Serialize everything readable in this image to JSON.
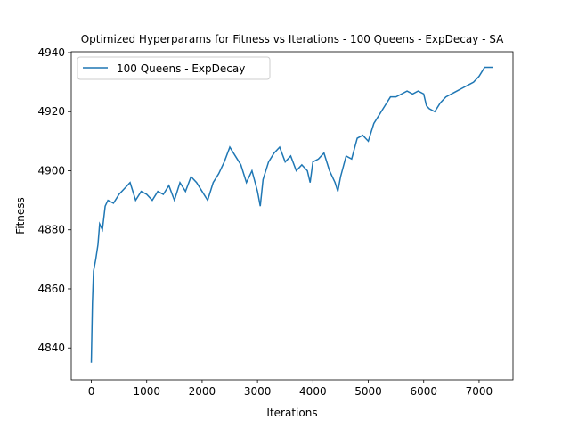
{
  "chart_data": {
    "type": "line",
    "title": "Optimized Hyperparams for Fitness vs Iterations - 100 Queens - ExpDecay - SA",
    "x_label": "Iterations",
    "y_label": "Fitness",
    "x": [
      0,
      10,
      20,
      40,
      80,
      120,
      150,
      200,
      250,
      300,
      400,
      500,
      600,
      700,
      800,
      900,
      1000,
      1100,
      1200,
      1300,
      1400,
      1500,
      1600,
      1700,
      1800,
      1900,
      2000,
      2100,
      2200,
      2300,
      2400,
      2500,
      2600,
      2700,
      2800,
      2900,
      3000,
      3050,
      3100,
      3200,
      3300,
      3400,
      3500,
      3600,
      3700,
      3800,
      3900,
      3950,
      4000,
      4100,
      4200,
      4300,
      4400,
      4450,
      4500,
      4600,
      4700,
      4800,
      4900,
      5000,
      5100,
      5200,
      5300,
      5400,
      5500,
      5600,
      5700,
      5800,
      5900,
      6000,
      6050,
      6100,
      6200,
      6300,
      6400,
      6500,
      6600,
      6700,
      6800,
      6900,
      7000,
      7100,
      7200,
      7250
    ],
    "series": [
      {
        "name": "100 Queens - ExpDecay",
        "color": "#1f77b4",
        "values": [
          4835,
          4845,
          4855,
          4866,
          4870,
          4875,
          4882,
          4880,
          4888,
          4890,
          4889,
          4892,
          4894,
          4896,
          4890,
          4893,
          4892,
          4890,
          4893,
          4892,
          4895,
          4890,
          4896,
          4893,
          4898,
          4896,
          4893,
          4890,
          4896,
          4899,
          4903,
          4908,
          4905,
          4902,
          4896,
          4900,
          4893,
          4888,
          4897,
          4903,
          4906,
          4908,
          4903,
          4905,
          4900,
          4902,
          4900,
          4896,
          4903,
          4904,
          4906,
          4900,
          4896,
          4893,
          4898,
          4905,
          4904,
          4911,
          4912,
          4910,
          4916,
          4919,
          4922,
          4925,
          4925,
          4926,
          4927,
          4926,
          4927,
          4926,
          4922,
          4921,
          4920,
          4923,
          4925,
          4926,
          4927,
          4928,
          4929,
          4930,
          4932,
          4935,
          4935,
          4935
        ]
      }
    ],
    "xlim": [
      -362,
      7612
    ],
    "xticks": [
      0,
      1000,
      2000,
      3000,
      4000,
      5000,
      6000,
      7000
    ],
    "ylim": [
      4829.2,
      4940.3
    ],
    "yticks": [
      4840,
      4860,
      4880,
      4900,
      4920,
      4940
    ],
    "legend": "upper left"
  }
}
